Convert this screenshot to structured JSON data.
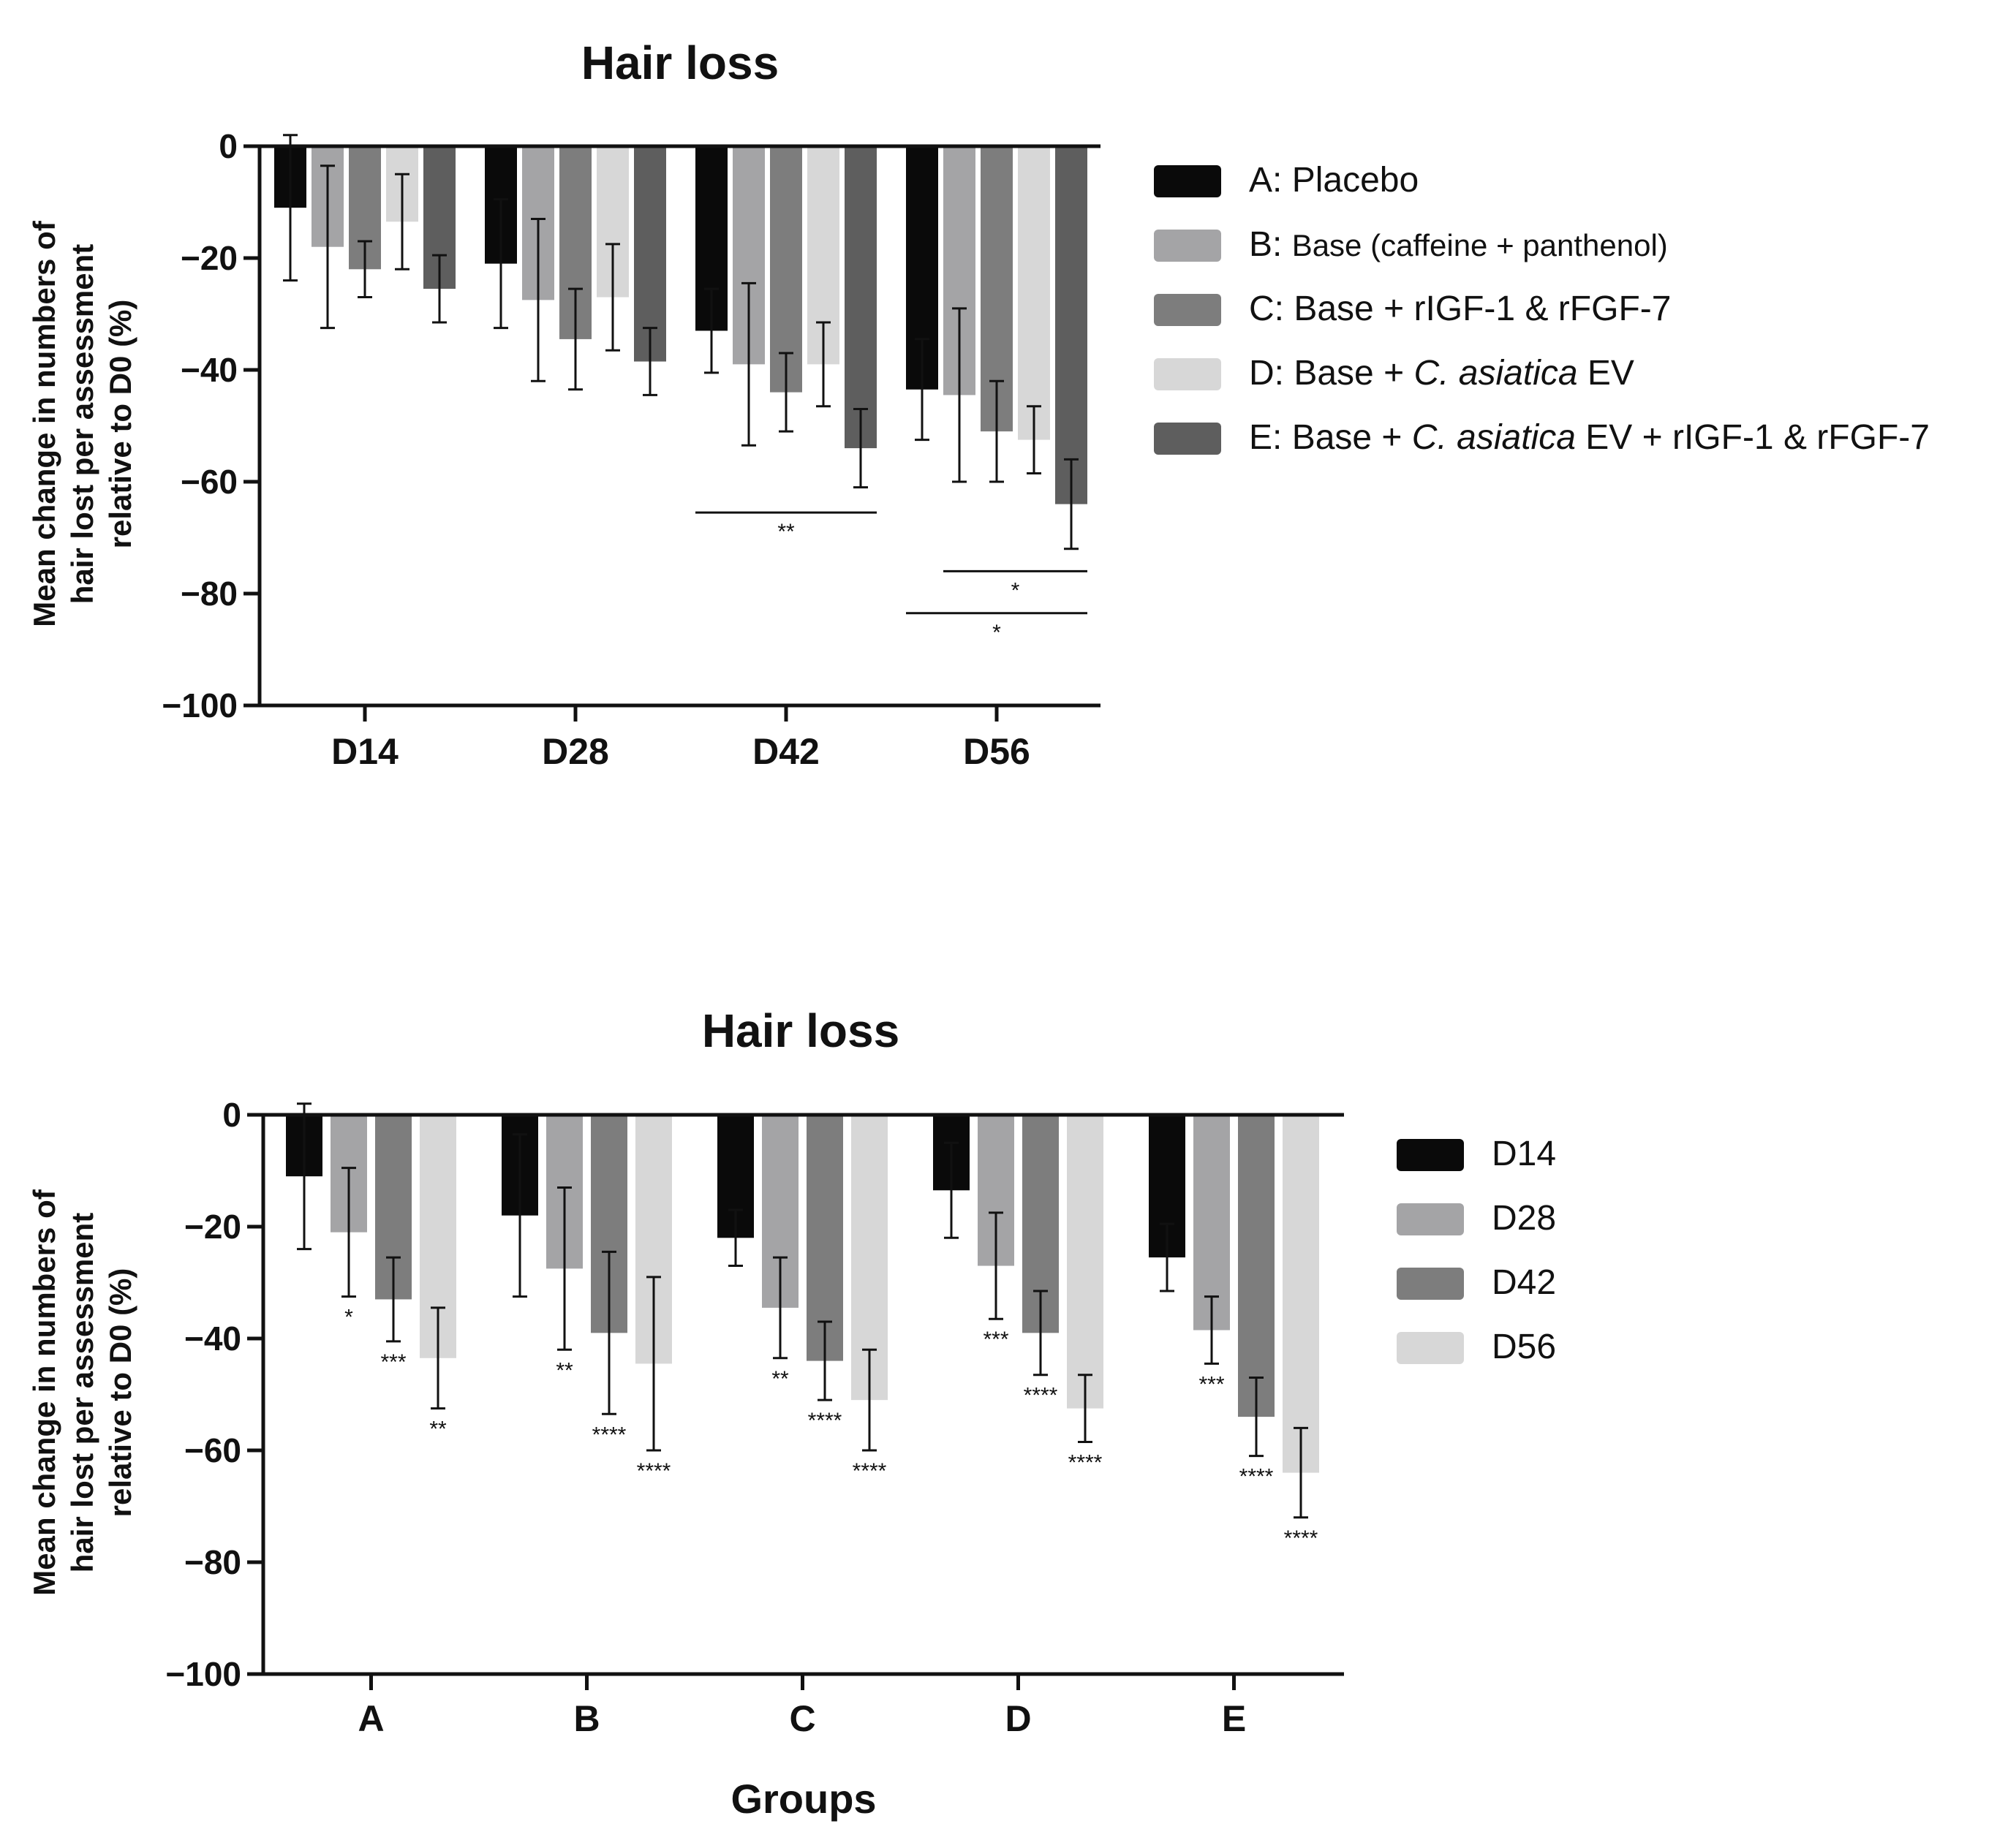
{
  "chart_data": [
    {
      "type": "bar",
      "title": "Hair loss",
      "ylabel_lines": [
        "Mean change in numbers of",
        "hair lost per assessment",
        "relative to D0 (%)"
      ],
      "xlabel": "",
      "ylim": [
        -100,
        0
      ],
      "yticks": [
        0,
        -20,
        -40,
        -60,
        -80,
        -100
      ],
      "ytick_labels": [
        "0",
        "−20",
        "−40",
        "−60",
        "−80",
        "−100"
      ],
      "categories": [
        "D14",
        "D28",
        "D42",
        "D56"
      ],
      "series": [
        {
          "key": "A",
          "name": "A: Placebo",
          "color": "#0a0a0a",
          "values": [
            -11,
            -21,
            -33,
            -43.5
          ],
          "errors": [
            13,
            11.5,
            7.5,
            9
          ]
        },
        {
          "key": "B",
          "name": "B: Base (caffeine + panthenol)",
          "color": "#a4a4a6",
          "values": [
            -18,
            -27.5,
            -39,
            -44.5
          ],
          "errors": [
            14.5,
            14.5,
            14.5,
            15.5
          ]
        },
        {
          "key": "C",
          "name": "C: Base + rIGF-1 & rFGF-7",
          "color": "#7d7d7d",
          "values": [
            -22,
            -34.5,
            -44,
            -51
          ],
          "errors": [
            5,
            9,
            7,
            9
          ]
        },
        {
          "key": "D",
          "name": "D: Base + C. asiatica EV",
          "color": "#d7d7d7",
          "values": [
            -13.5,
            -27,
            -39,
            -52.5
          ],
          "errors": [
            8.5,
            9.5,
            7.5,
            6
          ]
        },
        {
          "key": "E",
          "name": "E: Base + C. asiatica EV + rIGF-1 & rFGF-7",
          "color": "#5e5e5e",
          "values": [
            -25.5,
            -38.5,
            -54,
            -64
          ],
          "errors": [
            6,
            6,
            7,
            8
          ]
        }
      ],
      "legend": [
        {
          "prefix": "A: ",
          "rest": "Placebo"
        },
        {
          "prefix": "B: ",
          "rest": "Base (caffeine + panthenol)"
        },
        {
          "prefix": "C: ",
          "rest": "Base + rIGF-1 & rFGF-7"
        },
        {
          "prefix": "D: ",
          "rest": "Base + ",
          "italic": "C. asiatica",
          "tail": " EV"
        },
        {
          "prefix": "E: ",
          "rest": "Base + ",
          "italic": "C. asiatica",
          "tail": " EV + rIGF-1 & rFGF-7"
        }
      ],
      "significance": [
        {
          "category": "D42",
          "from": "A",
          "to": "E",
          "y": -65.5,
          "label": "**"
        },
        {
          "category": "D56",
          "from": "B",
          "to": "E",
          "y": -76,
          "label": "*"
        },
        {
          "category": "D56",
          "from": "A",
          "to": "E",
          "y": -83.5,
          "label": "*"
        }
      ]
    },
    {
      "type": "bar",
      "title": "Hair loss",
      "ylabel_lines": [
        "Mean change in numbers of",
        "hair lost per assessment",
        "relative to D0 (%)"
      ],
      "xlabel": "Groups",
      "ylim": [
        -100,
        0
      ],
      "yticks": [
        0,
        -20,
        -40,
        -60,
        -80,
        -100
      ],
      "ytick_labels": [
        "0",
        "−20",
        "−40",
        "−60",
        "−80",
        "−100"
      ],
      "categories": [
        "A",
        "B",
        "C",
        "D",
        "E"
      ],
      "series": [
        {
          "name": "D14",
          "color": "#0a0a0a",
          "values": [
            -11,
            -18,
            -22,
            -13.5,
            -25.5
          ],
          "errors": [
            13,
            14.5,
            5,
            8.5,
            6
          ]
        },
        {
          "name": "D28",
          "color": "#a4a4a6",
          "values": [
            -21,
            -27.5,
            -34.5,
            -27,
            -38.5
          ],
          "errors": [
            11.5,
            14.5,
            9,
            9.5,
            6
          ],
          "stars": [
            "*",
            "**",
            "**",
            "***",
            "***"
          ]
        },
        {
          "name": "D42",
          "color": "#7d7d7d",
          "values": [
            -33,
            -39,
            -44,
            -39,
            -54
          ],
          "errors": [
            7.5,
            14.5,
            7,
            7.5,
            7
          ],
          "stars": [
            "***",
            "****",
            "****",
            "****",
            "****"
          ]
        },
        {
          "name": "D56",
          "color": "#d7d7d7",
          "values": [
            -43.5,
            -44.5,
            -51,
            -52.5,
            -64
          ],
          "errors": [
            9,
            15.5,
            9,
            6,
            8
          ],
          "stars": [
            "**",
            "****",
            "****",
            "****",
            "****"
          ]
        }
      ]
    }
  ]
}
